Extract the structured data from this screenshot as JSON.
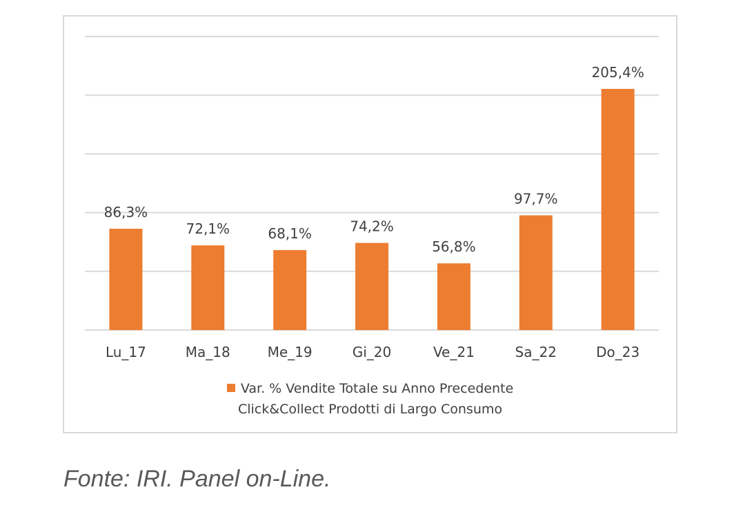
{
  "chart_data": {
    "type": "bar",
    "categories": [
      "Lu_17",
      "Ma_18",
      "Me_19",
      "Gi_20",
      "Ve_21",
      "Sa_22",
      "Do_23"
    ],
    "series": [
      {
        "name": "Var. % Vendite Totale su Anno Precedente Click&Collect Prodotti di Largo Consumo",
        "values": [
          86.3,
          72.1,
          68.1,
          74.2,
          56.8,
          97.7,
          205.4
        ],
        "data_labels": [
          "86,3%",
          "72,1%",
          "68,1%",
          "74,2%",
          "56,8%",
          "97,7%",
          "205,4%"
        ]
      }
    ],
    "ylim": [
      0,
      250
    ],
    "y_gridlines": [
      0,
      50,
      100,
      150,
      200,
      250
    ],
    "y_tick_labels_shown": false,
    "grid": true,
    "legend_position": "bottom",
    "legend_lines": [
      "Var. % Vendite Totale su Anno Precedente",
      "Click&Collect Prodotti di Largo Consumo"
    ],
    "bar_color": "#ed7d31",
    "grid_color": "#d9d9d9"
  },
  "source_note": "Fonte: IRI. Panel on-Line."
}
